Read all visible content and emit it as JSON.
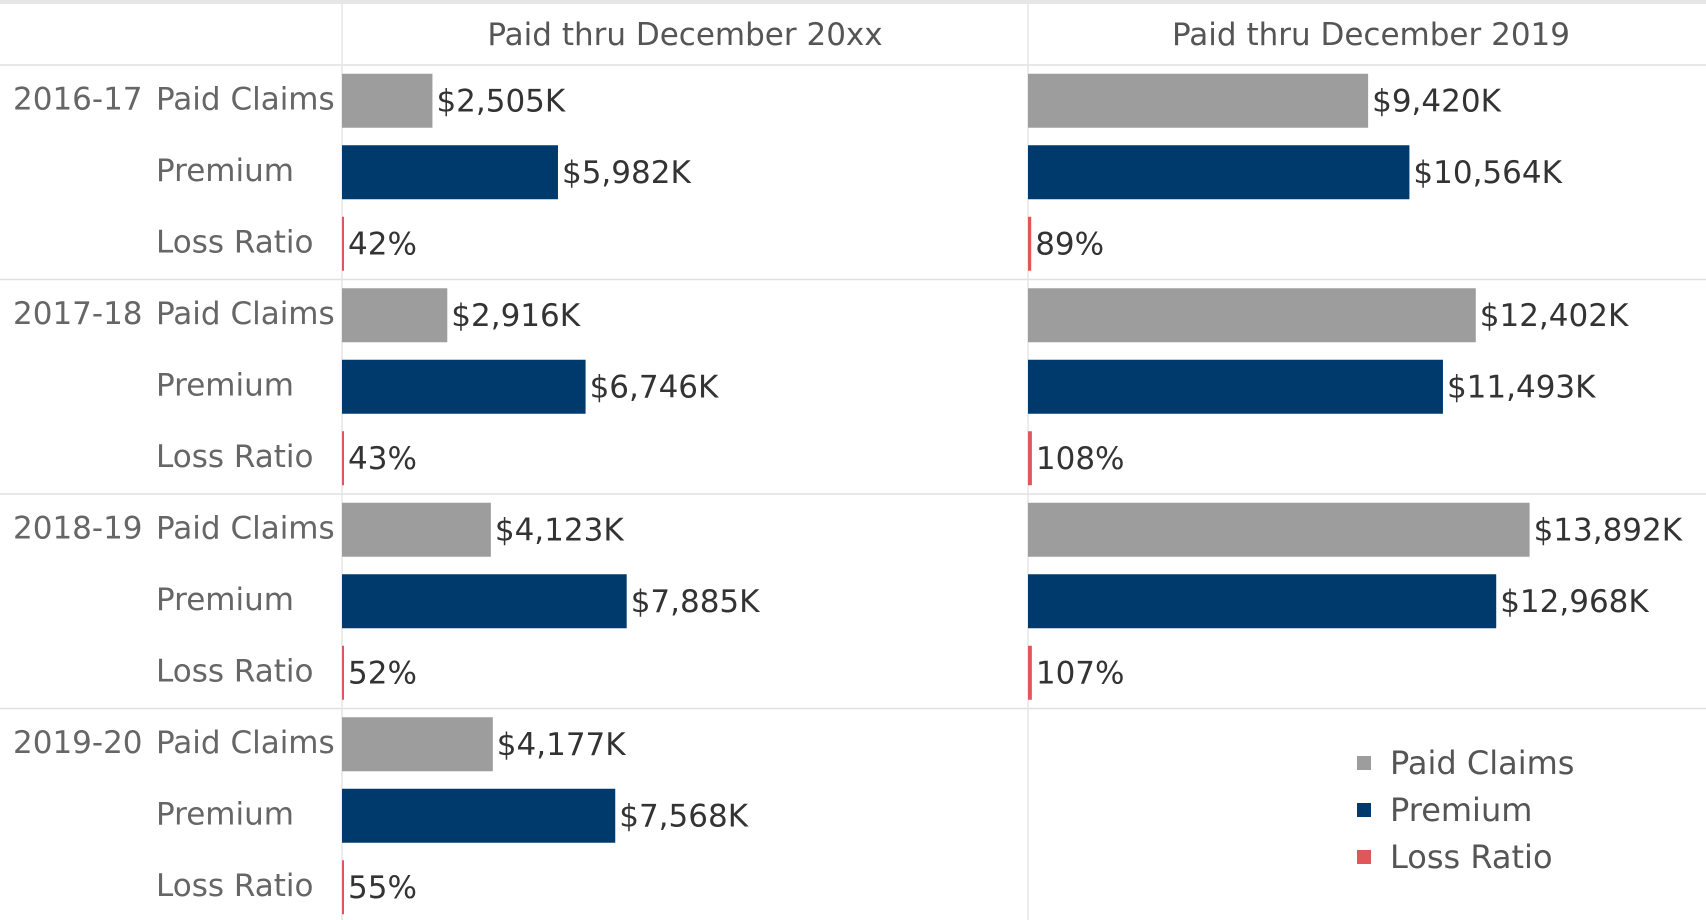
{
  "chart_data": {
    "type": "bar",
    "categories": [
      "2016-17",
      "2017-18",
      "2018-19",
      "2019-20"
    ],
    "xlim": [
      0,
      19000
    ],
    "legend": "bottom-right",
    "series": [
      {
        "name": "Paid Claims",
        "color": "#9d9d9d"
      },
      {
        "name": "Premium",
        "color": "#003a6d"
      },
      {
        "name": "Loss Ratio",
        "color": "#e05759"
      }
    ],
    "panels": [
      {
        "title": "Paid thru December 20xx",
        "values": [
          [
            2505,
            2916,
            4123,
            4177
          ],
          [
            5982,
            6746,
            7885,
            7568
          ],
          [
            42,
            43,
            52,
            55
          ]
        ],
        "value_labels": [
          [
            "$2,505K",
            "$2,916K",
            "$4,123K",
            "$4,177K"
          ],
          [
            "$5,982K",
            "$6,746K",
            "$7,885K",
            "$7,568K"
          ],
          [
            "42%",
            "43%",
            "52%",
            "55%"
          ]
        ]
      },
      {
        "title": "Paid thru December 2019",
        "values": [
          [
            9420,
            12402,
            13892,
            null
          ],
          [
            10564,
            11493,
            12968,
            null
          ],
          [
            89,
            108,
            107,
            null
          ]
        ],
        "value_labels": [
          [
            "$9,420K",
            "$12,402K",
            "$13,892K",
            null
          ],
          [
            "$10,564K",
            "$11,493K",
            "$12,968K",
            null
          ],
          [
            "89%",
            "108%",
            "107%",
            null
          ]
        ]
      }
    ]
  }
}
